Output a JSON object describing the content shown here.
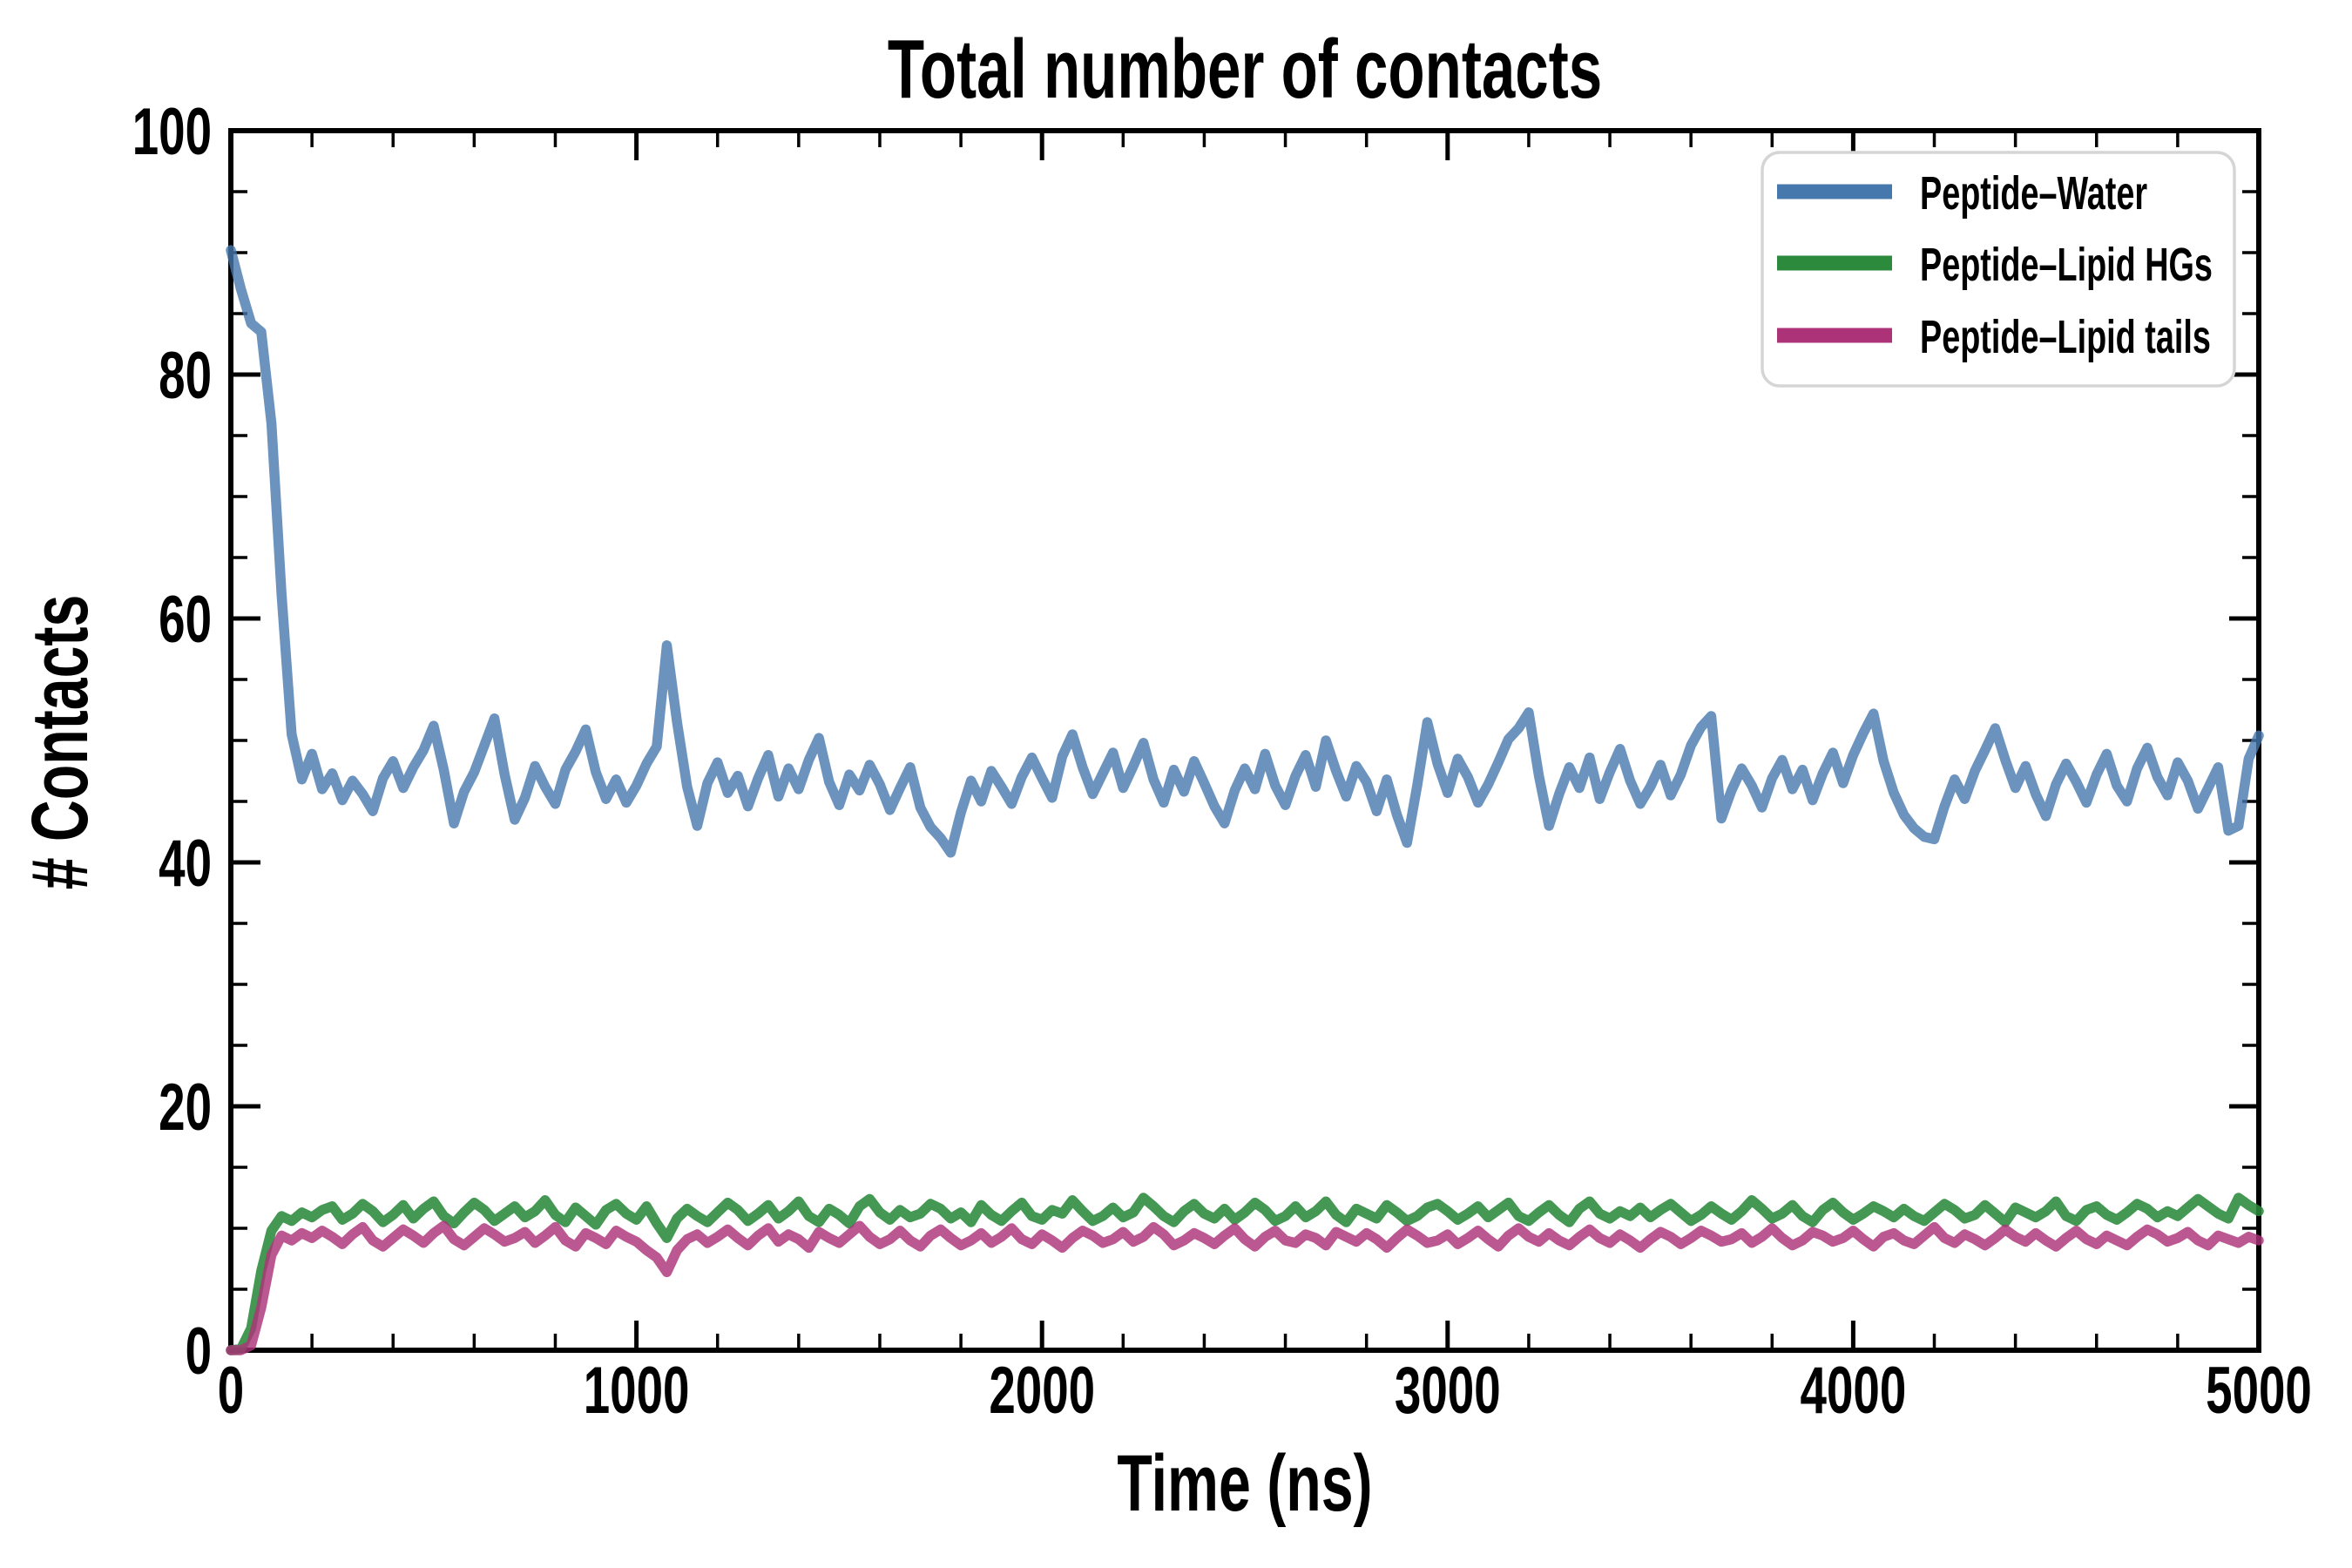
{
  "title": "Total number of contacts",
  "axes": {
    "xlabel": "Time (ns)",
    "ylabel": "# Contacts"
  },
  "styles": {
    "background": "#FFFFFF",
    "axis_color": "#000000",
    "legend_border_color": "#D5D5D5",
    "line_width": 11.5
  },
  "chart_data": {
    "type": "line",
    "title": "Total number of contacts",
    "xlabel": "Time (ns)",
    "ylabel": "# Contacts",
    "xlim": [
      0,
      5000
    ],
    "ylim": [
      0,
      100
    ],
    "x_major_ticks": [
      0,
      1000,
      2000,
      3000,
      4000,
      5000
    ],
    "x_minor_step": 200,
    "y_major_ticks": [
      0,
      20,
      40,
      60,
      80,
      100
    ],
    "y_minor_step": 5,
    "grid": false,
    "legend_position": "upper right",
    "x_start": 0,
    "x_step": 25,
    "series": [
      {
        "name": "Peptide–Water",
        "color": "#4678AE",
        "line_opacity": 0.8,
        "values": [
          90.2,
          87.0,
          84.2,
          83.5,
          76.0,
          62.0,
          50.5,
          46.8,
          48.9,
          46.0,
          47.3,
          45.1,
          46.7,
          45.6,
          44.2,
          46.9,
          48.3,
          46.1,
          47.8,
          49.2,
          51.2,
          47.6,
          43.2,
          45.8,
          47.4,
          49.6,
          51.8,
          47.2,
          43.5,
          45.3,
          47.9,
          46.2,
          44.8,
          47.6,
          49.1,
          50.9,
          47.4,
          45.2,
          46.8,
          44.9,
          46.3,
          48.1,
          49.5,
          57.8,
          51.5,
          46.2,
          43.0,
          46.5,
          48.2,
          45.7,
          47.1,
          44.6,
          46.9,
          48.8,
          45.4,
          47.7,
          46.0,
          48.4,
          50.2,
          46.6,
          44.7,
          47.2,
          45.9,
          48.0,
          46.4,
          44.3,
          46.1,
          47.8,
          44.5,
          42.9,
          42.0,
          40.8,
          44.1,
          46.7,
          45.0,
          47.5,
          46.2,
          44.8,
          47.0,
          48.6,
          46.9,
          45.3,
          48.7,
          50.5,
          47.8,
          45.6,
          47.3,
          49.0,
          46.1,
          47.9,
          49.8,
          46.8,
          44.9,
          47.6,
          45.8,
          48.3,
          46.5,
          44.6,
          43.2,
          45.9,
          47.7,
          46.0,
          48.9,
          46.3,
          44.7,
          47.1,
          48.8,
          46.2,
          50.0,
          47.5,
          45.4,
          47.9,
          46.6,
          44.2,
          46.8,
          43.9,
          41.6,
          46.3,
          51.5,
          48.1,
          45.7,
          48.5,
          47.0,
          44.9,
          46.4,
          48.2,
          50.1,
          51.0,
          52.3,
          47.1,
          43.0,
          45.6,
          47.8,
          46.1,
          48.6,
          45.2,
          47.4,
          49.3,
          46.7,
          44.8,
          46.2,
          48.0,
          45.5,
          47.2,
          49.6,
          51.1,
          52.0,
          43.6,
          45.9,
          47.7,
          46.3,
          44.5,
          46.9,
          48.4,
          46.0,
          47.6,
          45.1,
          47.3,
          49.0,
          46.5,
          48.8,
          50.6,
          52.2,
          48.3,
          45.7,
          43.9,
          42.8,
          42.1,
          41.9,
          44.6,
          46.8,
          45.2,
          47.5,
          49.2,
          51.0,
          48.4,
          46.1,
          47.9,
          45.6,
          43.8,
          46.4,
          48.1,
          46.6,
          44.9,
          47.2,
          48.9,
          46.3,
          45.0,
          47.7,
          49.4,
          47.0,
          45.5,
          48.2,
          46.7,
          44.4,
          46.1,
          47.8,
          42.6,
          43.0,
          48.5,
          50.4
        ]
      },
      {
        "name": "Peptide–Lipid HGs",
        "color": "#2B8A3B",
        "line_opacity": 0.88,
        "values": [
          0.0,
          0.1,
          1.8,
          6.5,
          9.8,
          11.0,
          10.6,
          11.3,
          10.9,
          11.5,
          11.8,
          10.7,
          11.2,
          12.0,
          11.4,
          10.5,
          11.1,
          11.9,
          10.8,
          11.6,
          12.2,
          11.0,
          10.4,
          11.3,
          12.1,
          11.5,
          10.6,
          11.2,
          11.8,
          10.9,
          11.4,
          12.3,
          11.1,
          10.5,
          11.7,
          11.0,
          10.3,
          11.5,
          12.0,
          11.2,
          10.7,
          11.8,
          10.4,
          9.2,
          10.8,
          11.6,
          11.0,
          10.5,
          11.3,
          12.1,
          11.5,
          10.6,
          11.2,
          11.9,
          10.8,
          11.4,
          12.2,
          11.0,
          10.5,
          11.6,
          11.1,
          10.4,
          11.8,
          12.4,
          11.3,
          10.7,
          11.5,
          10.9,
          11.2,
          12.0,
          11.6,
          10.8,
          11.3,
          10.5,
          11.9,
          11.1,
          10.6,
          11.4,
          12.1,
          11.0,
          10.7,
          11.5,
          11.2,
          12.3,
          11.4,
          10.6,
          11.0,
          11.7,
          10.9,
          11.3,
          12.5,
          11.8,
          11.0,
          10.5,
          11.4,
          12.0,
          11.2,
          10.8,
          11.6,
          10.7,
          11.3,
          12.1,
          11.5,
          10.6,
          11.0,
          11.8,
          10.9,
          11.4,
          12.2,
          11.1,
          10.5,
          11.6,
          11.2,
          10.8,
          11.9,
          11.3,
          10.6,
          11.0,
          11.7,
          12.0,
          11.4,
          10.7,
          11.2,
          11.8,
          10.9,
          11.5,
          12.1,
          11.0,
          10.6,
          11.3,
          11.9,
          11.1,
          10.5,
          11.6,
          12.2,
          11.2,
          10.8,
          11.4,
          11.0,
          11.7,
          10.9,
          11.5,
          12.0,
          11.3,
          10.6,
          11.1,
          11.8,
          11.2,
          10.7,
          11.4,
          12.3,
          11.6,
          10.8,
          11.2,
          11.9,
          11.0,
          10.5,
          11.5,
          12.1,
          11.3,
          10.7,
          11.2,
          11.8,
          11.4,
          10.9,
          11.6,
          11.0,
          10.6,
          11.3,
          12.0,
          11.5,
          10.8,
          11.1,
          11.9,
          11.2,
          10.5,
          11.7,
          11.3,
          10.9,
          11.4,
          12.2,
          11.0,
          10.6,
          11.5,
          11.8,
          11.1,
          10.7,
          11.3,
          12.0,
          11.6,
          10.9,
          11.4,
          11.0,
          11.7,
          12.4,
          11.8,
          11.2,
          10.8,
          12.5,
          11.9,
          11.4
        ]
      },
      {
        "name": "Peptide–Lipid tails",
        "color": "#AD3379",
        "line_opacity": 0.82,
        "values": [
          0.0,
          0.0,
          0.4,
          3.5,
          7.8,
          9.4,
          9.0,
          9.6,
          9.2,
          9.8,
          9.3,
          8.7,
          9.5,
          10.1,
          9.0,
          8.5,
          9.2,
          9.9,
          9.4,
          8.8,
          9.6,
          10.2,
          9.1,
          8.6,
          9.3,
          10.0,
          9.5,
          8.9,
          9.2,
          9.7,
          8.8,
          9.4,
          10.1,
          9.0,
          8.5,
          9.6,
          9.2,
          8.7,
          9.8,
          9.3,
          8.9,
          8.2,
          7.6,
          6.4,
          8.2,
          9.1,
          9.5,
          8.8,
          9.3,
          9.9,
          9.2,
          8.6,
          9.4,
          10.0,
          8.9,
          9.5,
          9.1,
          8.4,
          9.7,
          9.2,
          8.8,
          9.5,
          10.2,
          9.3,
          8.7,
          9.1,
          9.8,
          9.0,
          8.5,
          9.4,
          9.9,
          9.2,
          8.6,
          9.0,
          9.6,
          8.8,
          9.3,
          10.0,
          9.1,
          8.7,
          9.5,
          9.0,
          8.4,
          9.2,
          9.8,
          9.4,
          8.8,
          9.1,
          9.7,
          8.9,
          9.3,
          10.1,
          9.5,
          8.6,
          9.0,
          9.6,
          9.2,
          8.7,
          9.4,
          10.0,
          9.1,
          8.5,
          9.3,
          9.8,
          9.0,
          8.8,
          9.5,
          9.2,
          8.6,
          9.7,
          9.3,
          8.9,
          9.6,
          9.1,
          8.4,
          9.2,
          9.9,
          9.4,
          8.8,
          9.0,
          9.5,
          8.7,
          9.2,
          9.8,
          9.1,
          8.5,
          9.4,
          10.0,
          9.3,
          8.9,
          9.6,
          9.0,
          8.6,
          9.3,
          9.9,
          9.2,
          8.8,
          9.5,
          9.0,
          8.4,
          9.1,
          9.7,
          9.3,
          8.7,
          9.2,
          9.8,
          9.4,
          8.9,
          9.1,
          9.6,
          8.8,
          9.3,
          10.0,
          9.2,
          8.6,
          9.0,
          9.7,
          9.4,
          8.9,
          9.2,
          9.8,
          9.1,
          8.5,
          9.3,
          9.6,
          9.0,
          8.7,
          9.4,
          10.1,
          9.2,
          8.8,
          9.5,
          9.1,
          8.6,
          9.2,
          9.9,
          9.3,
          8.9,
          9.6,
          9.0,
          8.5,
          9.2,
          9.8,
          9.1,
          8.7,
          9.4,
          9.0,
          8.6,
          9.3,
          9.9,
          9.5,
          8.9,
          9.2,
          9.7,
          9.0,
          8.6,
          9.4,
          9.1,
          8.8,
          9.3,
          9.0
        ]
      }
    ]
  }
}
